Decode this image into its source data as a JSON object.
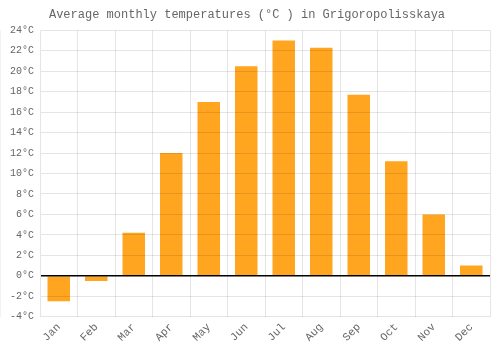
{
  "chart_data": {
    "type": "bar",
    "title": "Average monthly temperatures (°C ) in Grigoropolisskaya",
    "categories": [
      "Jan",
      "Feb",
      "Mar",
      "Apr",
      "May",
      "Jun",
      "Jul",
      "Aug",
      "Sep",
      "Oct",
      "Nov",
      "Dec"
    ],
    "values": [
      -2.5,
      -0.5,
      4.2,
      12.0,
      17.0,
      20.5,
      23.0,
      22.3,
      17.7,
      11.2,
      6.0,
      1.0
    ],
    "color": "#FFA520",
    "ylim": [
      -4,
      24
    ],
    "yticks": [
      {
        "value": -4,
        "label": "-4°C"
      },
      {
        "value": -2,
        "label": "-2°C"
      },
      {
        "value": 0,
        "label": "0°C"
      },
      {
        "value": 2,
        "label": "2°C"
      },
      {
        "value": 4,
        "label": "4°C"
      },
      {
        "value": 6,
        "label": "6°C"
      },
      {
        "value": 8,
        "label": "8°C"
      },
      {
        "value": 10,
        "label": "10°C"
      },
      {
        "value": 12,
        "label": "12°C"
      },
      {
        "value": 14,
        "label": "14°C"
      },
      {
        "value": 16,
        "label": "16°C"
      },
      {
        "value": 18,
        "label": "18°C"
      },
      {
        "value": 20,
        "label": "20°C"
      },
      {
        "value": 22,
        "label": "22°C"
      },
      {
        "value": 24,
        "label": "24°C"
      }
    ],
    "grid": true
  }
}
